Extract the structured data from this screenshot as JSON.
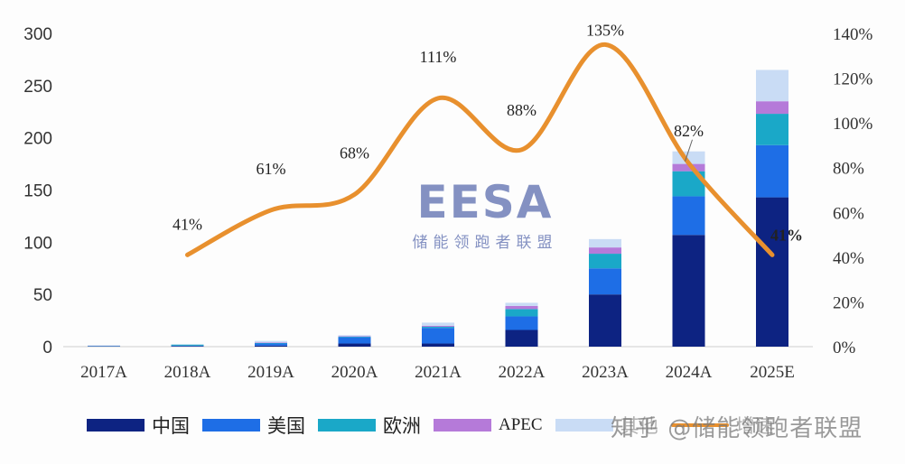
{
  "chart_data": {
    "type": "bar",
    "subtype": "stacked-bar-with-line",
    "title": "",
    "xlabel": "",
    "ylabel": "",
    "categories": [
      "2017A",
      "2018A",
      "2019A",
      "2020A",
      "2021A",
      "2022A",
      "2023A",
      "2024A",
      "2025E"
    ],
    "series": [
      {
        "name": "中国",
        "color": "#0d2382",
        "values": [
          0.3,
          0.6,
          1,
          3,
          3,
          16,
          50,
          107,
          143
        ]
      },
      {
        "name": "美国",
        "color": "#1e6ee6",
        "values": [
          0.3,
          0.4,
          2,
          6,
          15,
          13,
          25,
          37,
          50
        ]
      },
      {
        "name": "欧洲",
        "color": "#1aa8c8",
        "values": [
          0.2,
          1,
          0.5,
          0.5,
          1,
          7,
          14,
          24,
          30
        ]
      },
      {
        "name": "APEC",
        "color": "#b57ad9",
        "values": [
          0.1,
          0,
          0.5,
          0.5,
          1,
          3,
          6,
          7,
          12
        ]
      },
      {
        "name": "其他",
        "color": "#c9dcf5",
        "values": [
          0.4,
          0.3,
          1.5,
          1,
          3,
          3,
          8,
          12,
          30
        ]
      }
    ],
    "line_series": {
      "name": "增速",
      "axis": "right",
      "color": "#e8902e",
      "categories": [
        "2018A",
        "2019A",
        "2020A",
        "2021A",
        "2022A",
        "2023A",
        "2024A",
        "2025E"
      ],
      "values": [
        41,
        61,
        68,
        111,
        88,
        135,
        82,
        41
      ],
      "labels": [
        "41%",
        "61%",
        "68%",
        "111%",
        "88%",
        "135%",
        "82%",
        "41%"
      ]
    },
    "left_axis": {
      "ylim": [
        0,
        300
      ],
      "ticks": [
        0,
        50,
        100,
        150,
        200,
        250,
        300
      ]
    },
    "right_axis": {
      "ylim": [
        0,
        140
      ],
      "ticks": [
        "0%",
        "20%",
        "40%",
        "60%",
        "80%",
        "100%",
        "120%",
        "140%"
      ]
    },
    "grid": false,
    "legend_position": "bottom"
  },
  "legend": {
    "items": [
      {
        "label": "中国",
        "color": "#0d2382"
      },
      {
        "label": "美国",
        "color": "#1e6ee6"
      },
      {
        "label": "欧洲",
        "color": "#1aa8c8"
      },
      {
        "label": "APEC",
        "color": "#b57ad9"
      },
      {
        "label": "其他",
        "color": "#c9dcf5"
      }
    ],
    "line_label": "增速",
    "line_color": "#e8902e"
  },
  "watermark": {
    "logo": "EESA",
    "logo_sub": "储能领跑者联盟",
    "zhihu": "知乎 @储能领跑者联盟"
  }
}
